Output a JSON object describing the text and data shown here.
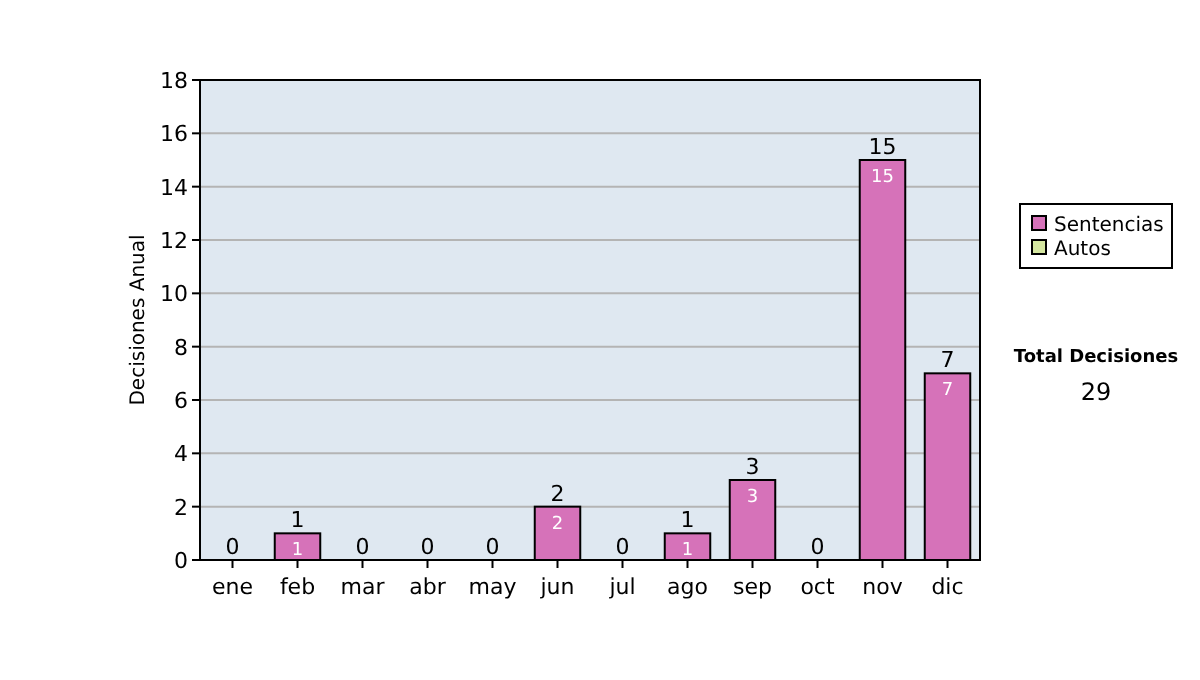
{
  "chart_data": {
    "type": "bar",
    "stacked": true,
    "ylabel": "Decisiones Anual",
    "categories": [
      "ene",
      "feb",
      "mar",
      "abr",
      "may",
      "jun",
      "jul",
      "ago",
      "sep",
      "oct",
      "nov",
      "dic"
    ],
    "series": [
      {
        "name": "Sentencias",
        "color": "#d672b9",
        "values": [
          0,
          1,
          0,
          0,
          0,
          2,
          0,
          1,
          3,
          0,
          15,
          7
        ],
        "value_labels": [
          null,
          "1",
          null,
          null,
          null,
          "2",
          null,
          "1",
          "3",
          null,
          "15",
          "7"
        ]
      },
      {
        "name": "Autos",
        "color": "#d4e6a0",
        "values": [
          0,
          0,
          0,
          0,
          0,
          0,
          0,
          0,
          0,
          0,
          0,
          0
        ]
      }
    ],
    "totals": [
      "0",
      "1",
      "0",
      "0",
      "0",
      "2",
      "0",
      "1",
      "3",
      "0",
      "15",
      "7"
    ],
    "ylim": [
      0,
      18
    ],
    "yticks": [
      0,
      2,
      4,
      6,
      8,
      10,
      12,
      14,
      16,
      18
    ],
    "grid": "y",
    "legend": "right",
    "annotations": [
      "Total Decisiones",
      "29"
    ]
  }
}
